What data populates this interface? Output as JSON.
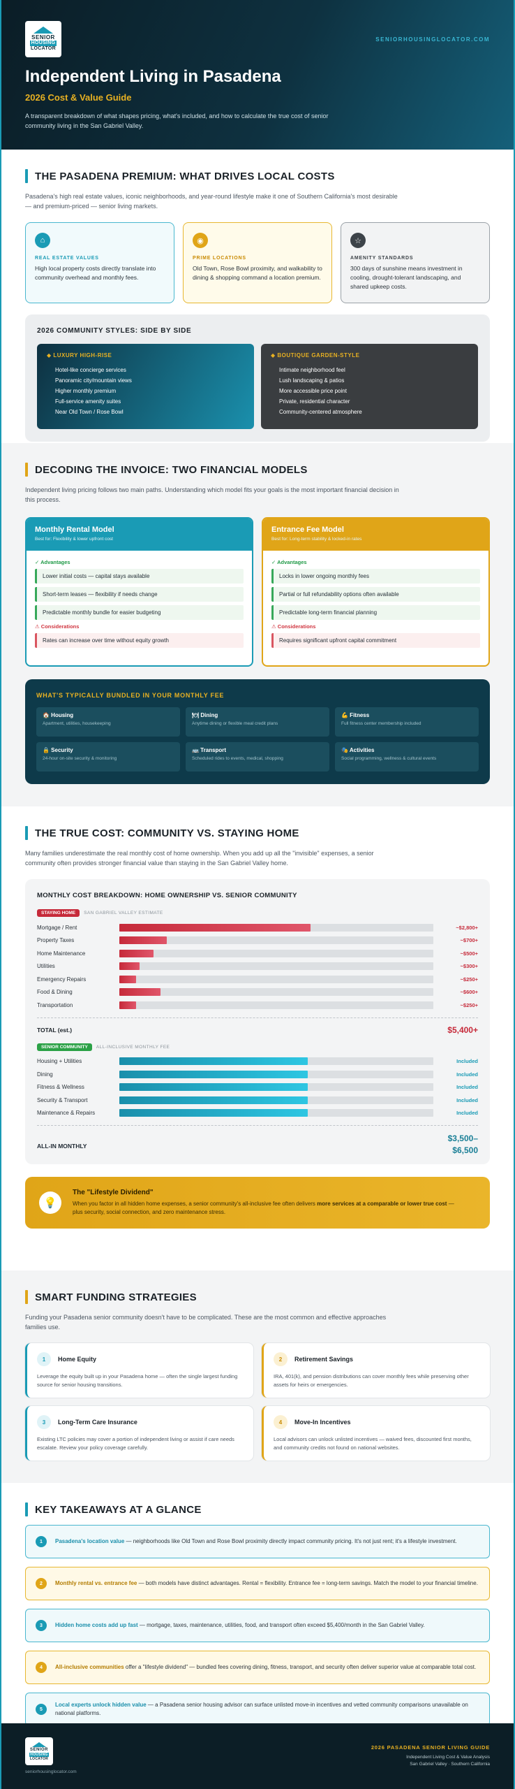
{
  "header": {
    "logo_line1": "SENIOR",
    "logo_line2": "HOUSING",
    "logo_line3": "LOCATOR",
    "site": "SENIORHOUSINGLOCATOR.COM",
    "title": "Independent Living in Pasadena",
    "subtitle": "2026 Cost & Value Guide",
    "intro": "A transparent breakdown of what shapes pricing, what's included, and how to calculate the true cost of senior community living in the San Gabriel Valley."
  },
  "premium": {
    "title": "THE PASADENA PREMIUM: WHAT DRIVES LOCAL COSTS",
    "lead": "Pasadena's high real estate values, iconic neighborhoods, and year-round lifestyle make it one of Southern California's most desirable — and premium-priced — senior living markets.",
    "cards": [
      {
        "icon": "home-icon",
        "glyph": "⌂",
        "title": "REAL ESTATE VALUES",
        "text": "High local property costs directly translate into community overhead and monthly fees."
      },
      {
        "icon": "location-icon",
        "glyph": "◉",
        "title": "PRIME LOCATIONS",
        "text": "Old Town, Rose Bowl proximity, and walkability to dining & shopping command a location premium."
      },
      {
        "icon": "star-icon",
        "glyph": "☆",
        "title": "AMENITY STANDARDS",
        "text": "300 days of sunshine means investment in cooling, drought-tolerant landscaping, and shared upkeep costs."
      }
    ],
    "styles_title": "2026 COMMUNITY STYLES: SIDE BY SIDE",
    "luxury": {
      "title": "◆ LUXURY HIGH-RISE",
      "items": [
        "Hotel-like concierge services",
        "Panoramic city/mountain views",
        "Higher monthly premium",
        "Full-service amenity suites",
        "Near Old Town / Rose Bowl"
      ]
    },
    "boutique": {
      "title": "◆ BOUTIQUE GARDEN-STYLE",
      "items": [
        "Intimate neighborhood feel",
        "Lush landscaping & patios",
        "More accessible price point",
        "Private, residential character",
        "Community-centered atmosphere"
      ]
    }
  },
  "invoice": {
    "title": "DECODING THE INVOICE: TWO FINANCIAL MODELS",
    "lead": "Independent living pricing follows two main paths. Understanding which model fits your goals is the most important financial decision in this process.",
    "monthly": {
      "title": "Monthly Rental Model",
      "sub": "Best for: Flexibility & lower upfront cost",
      "adv_label": "✓ Advantages",
      "adv": [
        "Lower initial costs — capital stays available",
        "Short-term leases — flexibility if needs change",
        "Predictable monthly bundle for easier budgeting"
      ],
      "con_label": "⚠ Considerations",
      "con": [
        "Rates can increase over time without equity growth"
      ]
    },
    "entrance": {
      "title": "Entrance Fee Model",
      "sub": "Best for: Long-term stability & locked-in rates",
      "adv_label": "✓ Advantages",
      "adv": [
        "Locks in lower ongoing monthly fees",
        "Partial or full refundability options often available",
        "Predictable long-term financial planning"
      ],
      "con_label": "⚠ Considerations",
      "con": [
        "Requires significant upfront capital commitment"
      ]
    },
    "bundle_title": "WHAT'S TYPICALLY BUNDLED IN YOUR MONTHLY FEE",
    "bundle": [
      {
        "t": "🏠 Housing",
        "d": "Apartment, utilities, housekeeping"
      },
      {
        "t": "🍽 Dining",
        "d": "Anytime dining or flexible meal credit plans"
      },
      {
        "t": "💪 Fitness",
        "d": "Full fitness center membership included"
      },
      {
        "t": "🔒 Security",
        "d": "24-hour on-site security & monitoring"
      },
      {
        "t": "🚌 Transport",
        "d": "Scheduled rides to events, medical, shopping"
      },
      {
        "t": "🎭 Activities",
        "d": "Social programming, wellness & cultural events"
      }
    ]
  },
  "truecost": {
    "title": "THE TRUE COST: COMMUNITY VS. STAYING HOME",
    "lead": "Many families underestimate the real monthly cost of home ownership. When you add up all the \"invisible\" expenses, a senior community often provides stronger financial value than staying in the San Gabriel Valley home.",
    "box_title": "MONTHLY COST BREAKDOWN: HOME OWNERSHIP VS. SENIOR COMMUNITY",
    "home_tag": "STAYING HOME",
    "home_note": "SAN GABRIEL VALLEY ESTIMATE",
    "home_total_label": "TOTAL (est.)",
    "home_total": "$5,400+",
    "comm_tag": "SENIOR COMMUNITY",
    "comm_note": "ALL-INCLUSIVE MONTHLY FEE",
    "comm_total_label": "ALL-IN MONTHLY",
    "comm_total": "$3,500–$6,500",
    "dividend_title": "The \"Lifestyle Dividend\"",
    "dividend_text_a": "When you factor in all hidden home expenses, a senior community's all-inclusive fee often delivers ",
    "dividend_bold": "more services at a comparable or lower true cost",
    "dividend_text_b": " — plus security, social connection, and zero maintenance stress."
  },
  "chart_data": {
    "type": "bar",
    "title": "MONTHLY COST BREAKDOWN: HOME OWNERSHIP VS. SENIOR COMMUNITY",
    "series": [
      {
        "name": "STAYING HOME",
        "categories": [
          "Mortgage / Rent",
          "Property Taxes",
          "Home Maintenance",
          "Utilities",
          "Emergency Repairs",
          "Food & Dining",
          "Transportation"
        ],
        "values": [
          2800,
          700,
          500,
          300,
          250,
          600,
          250
        ],
        "labels": [
          "~$2,800+",
          "~$700+",
          "~$500+",
          "~$300+",
          "~$250+",
          "~$600+",
          "~$250+"
        ]
      },
      {
        "name": "SENIOR COMMUNITY",
        "categories": [
          "Housing + Utilities",
          "Dining",
          "Fitness & Wellness",
          "Security & Transport",
          "Maintenance & Repairs"
        ],
        "values_fraction": [
          0.6,
          0.6,
          0.6,
          0.6,
          0.6
        ],
        "labels": [
          "Included",
          "Included",
          "Included",
          "Included",
          "Included"
        ]
      }
    ],
    "xlim": [
      0,
      4600
    ]
  },
  "funding": {
    "title": "SMART FUNDING STRATEGIES",
    "lead": "Funding your Pasadena senior community doesn't have to be complicated. These are the most common and effective approaches families use.",
    "cards": [
      {
        "n": "1",
        "t": "Home Equity",
        "d": "Leverage the equity built up in your Pasadena home — often the single largest funding source for senior housing transitions."
      },
      {
        "n": "2",
        "t": "Retirement Savings",
        "d": "IRA, 401(k), and pension distributions can cover monthly fees while preserving other assets for heirs or emergencies."
      },
      {
        "n": "3",
        "t": "Long-Term Care Insurance",
        "d": "Existing LTC policies may cover a portion of independent living or assist if care needs escalate. Review your policy coverage carefully."
      },
      {
        "n": "4",
        "t": "Move-In Incentives",
        "d": "Local advisors can unlock unlisted incentives — waived fees, discounted first months, and community credits not found on national websites."
      }
    ]
  },
  "takeaways": {
    "title": "KEY TAKEAWAYS AT A GLANCE",
    "items": [
      {
        "n": "1",
        "k": "Pasadena's location value",
        "t": " — neighborhoods like Old Town and Rose Bowl proximity directly impact community pricing. It's not just rent; it's a lifestyle investment."
      },
      {
        "n": "2",
        "k": "Monthly rental vs. entrance fee",
        "t": " — both models have distinct advantages. Rental = flexibility. Entrance fee = long-term savings. Match the model to your financial timeline."
      },
      {
        "n": "3",
        "k": "Hidden home costs add up fast",
        "t": " — mortgage, taxes, maintenance, utilities, food, and transport often exceed $5,400/month in the San Gabriel Valley."
      },
      {
        "n": "4",
        "k": "All-inclusive communities",
        "t": " offer a \"lifestyle dividend\" — bundled fees covering dining, fitness, transport, and security often deliver superior value at comparable total cost."
      },
      {
        "n": "5",
        "k": "Local experts unlock hidden value",
        "t": " — a Pasadena senior housing advisor can surface unlisted move-in incentives and vetted community comparisons unavailable on national platforms."
      }
    ]
  },
  "footer": {
    "url": "seniorhousinglocator.com",
    "a": "2026 PASADENA SENIOR LIVING GUIDE",
    "b": "Independent Living Cost & Value Analysis",
    "c": "San Gabriel Valley · Southern California"
  },
  "colors": {
    "teal": "#1a9bb5",
    "gold": "#e0a518",
    "red": "#c62a3a",
    "green": "#2ba146",
    "navy": "#0e3a4a"
  }
}
